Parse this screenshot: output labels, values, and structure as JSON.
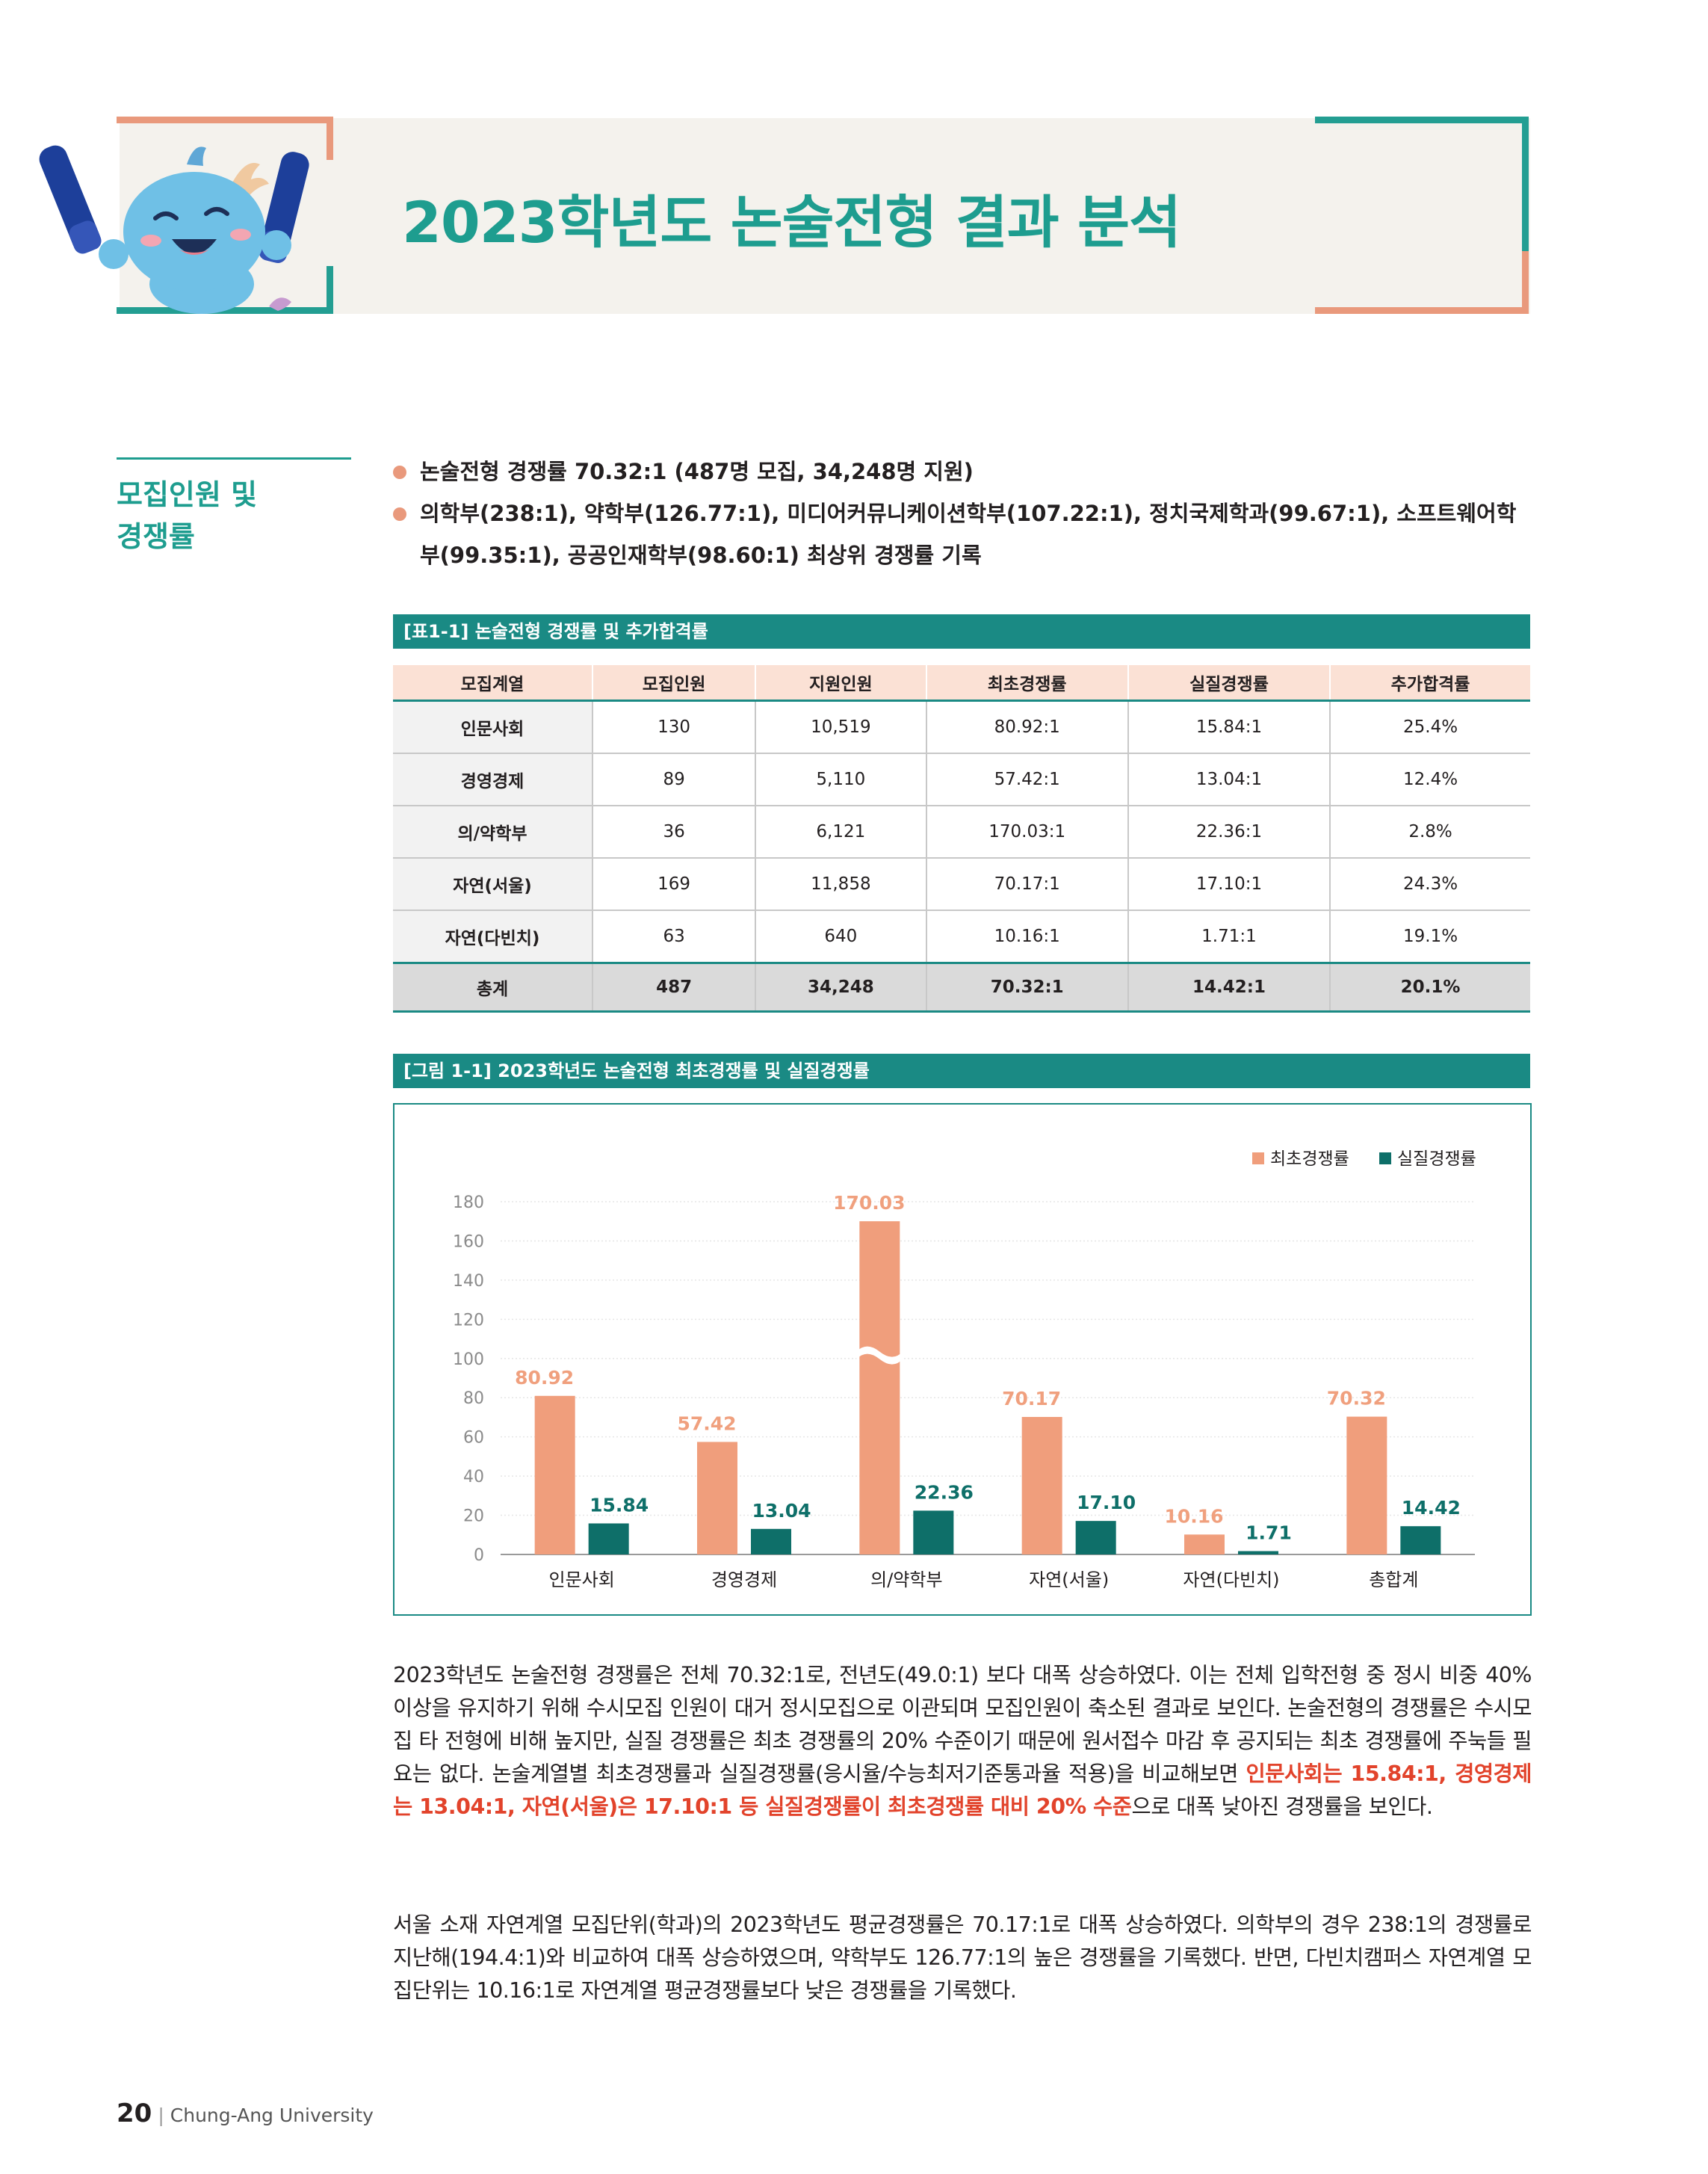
{
  "header": {
    "title": "2023학년도 논술전형 결과 분석"
  },
  "side_heading": {
    "line1": "모집인원 및",
    "line2": "경쟁률"
  },
  "bullets": [
    "논술전형 경쟁률 70.32:1 (487명 모집, 34,248명 지원)",
    "의학부(238:1), 약학부(126.77:1), 미디어커뮤니케이션학부(107.22:1), 정치국제학과(99.67:1), 소프트웨어학부(99.35:1), 공공인재학부(98.60:1) 최상위 경쟁률 기록"
  ],
  "table": {
    "caption": "[표1-1] 논술전형 경쟁률 및 추가합격률",
    "headers": [
      "모집계열",
      "모집인원",
      "지원인원",
      "최초경쟁률",
      "실질경쟁률",
      "추가합격률"
    ],
    "rows": [
      [
        "인문사회",
        "130",
        "10,519",
        "80.92:1",
        "15.84:1",
        "25.4%"
      ],
      [
        "경영경제",
        "89",
        "5,110",
        "57.42:1",
        "13.04:1",
        "12.4%"
      ],
      [
        "의/약학부",
        "36",
        "6,121",
        "170.03:1",
        "22.36:1",
        "2.8%"
      ],
      [
        "자연(서울)",
        "169",
        "11,858",
        "70.17:1",
        "17.10:1",
        "24.3%"
      ],
      [
        "자연(다빈치)",
        "63",
        "640",
        "10.16:1",
        "1.71:1",
        "19.1%"
      ]
    ],
    "total": [
      "총계",
      "487",
      "34,248",
      "70.32:1",
      "14.42:1",
      "20.1%"
    ]
  },
  "chart_caption": "[그림 1-1] 2023학년도 논술전형 최초경쟁률 및 실질경쟁률",
  "chart_data": {
    "type": "bar",
    "categories": [
      "인문사회",
      "경영경제",
      "의/약학부",
      "자연(서울)",
      "자연(다빈치)",
      "총합계"
    ],
    "series": [
      {
        "name": "최초경쟁률",
        "values": [
          80.92,
          57.42,
          170.03,
          70.17,
          10.16,
          70.32
        ],
        "color": "#f09e7c"
      },
      {
        "name": "실질경쟁률",
        "values": [
          15.84,
          13.04,
          22.36,
          17.1,
          1.71,
          14.42
        ],
        "color": "#0e6f69"
      }
    ],
    "value_labels": [
      [
        "80.92",
        "57.42",
        "170.03",
        "70.17",
        "10.16",
        "70.32"
      ],
      [
        "15.84",
        "13.04",
        "22.36",
        "17.10",
        "1.71",
        "14.42"
      ]
    ],
    "yticks": [
      "0",
      "20",
      "40",
      "60",
      "80",
      "100",
      "120",
      "140",
      "160",
      "180"
    ],
    "ylim": [
      0,
      180
    ],
    "grid": true,
    "legend": "top-right",
    "axis_break_category": "의/약학부"
  },
  "paragraphs": {
    "p1_a": "2023학년도 논술전형 경쟁률은 전체 70.32:1로, 전년도(49.0:1) 보다 대폭 상승하였다. 이는 전체 입학전형 중 정시 비중 40% 이상을 유지하기 위해 수시모집 인원이 대거 정시모집으로 이관되며 모집인원이 축소된 결과로 보인다. 논술전형의 경쟁률은 수시모집 타 전형에 비해 높지만, 실질 경쟁률은 최초 경쟁률의 20% 수준이기 때문에 원서접수 마감 후 공지되는 최초 경쟁률에 주눅들 필요는 없다. 논술계열별 최초경쟁률과 실질경쟁률(응시율/수능최저기준통과율 적용)을 비교해보면 ",
    "p1_highlight": "인문사회는 15.84:1, 경영경제는 13.04:1, 자연(서울)은 17.10:1 등 실질경쟁률이 최초경쟁률 대비 20% 수준",
    "p1_b": "으로 대폭 낮아진 경쟁률을 보인다.",
    "p2": "서울 소재 자연계열 모집단위(학과)의 2023학년도 평균경쟁률은 70.17:1로 대폭 상승하였다. 의학부의 경우 238:1의 경쟁률로 지난해(194.4:1)와 비교하여 대폭 상승하였으며, 약학부도 126.77:1의 높은 경쟁률을 기록했다. 반면, 다빈치캠퍼스 자연계열 모집단위는 10.16:1로 자연계열 평균경쟁률보다 낮은 경쟁률을 기록했다."
  },
  "footer": {
    "page_number": "20",
    "publisher": "Chung-Ang University"
  },
  "colors": {
    "teal": "#1e9d8f",
    "salmon": "#e9997c",
    "highlight": "#e2432b"
  }
}
